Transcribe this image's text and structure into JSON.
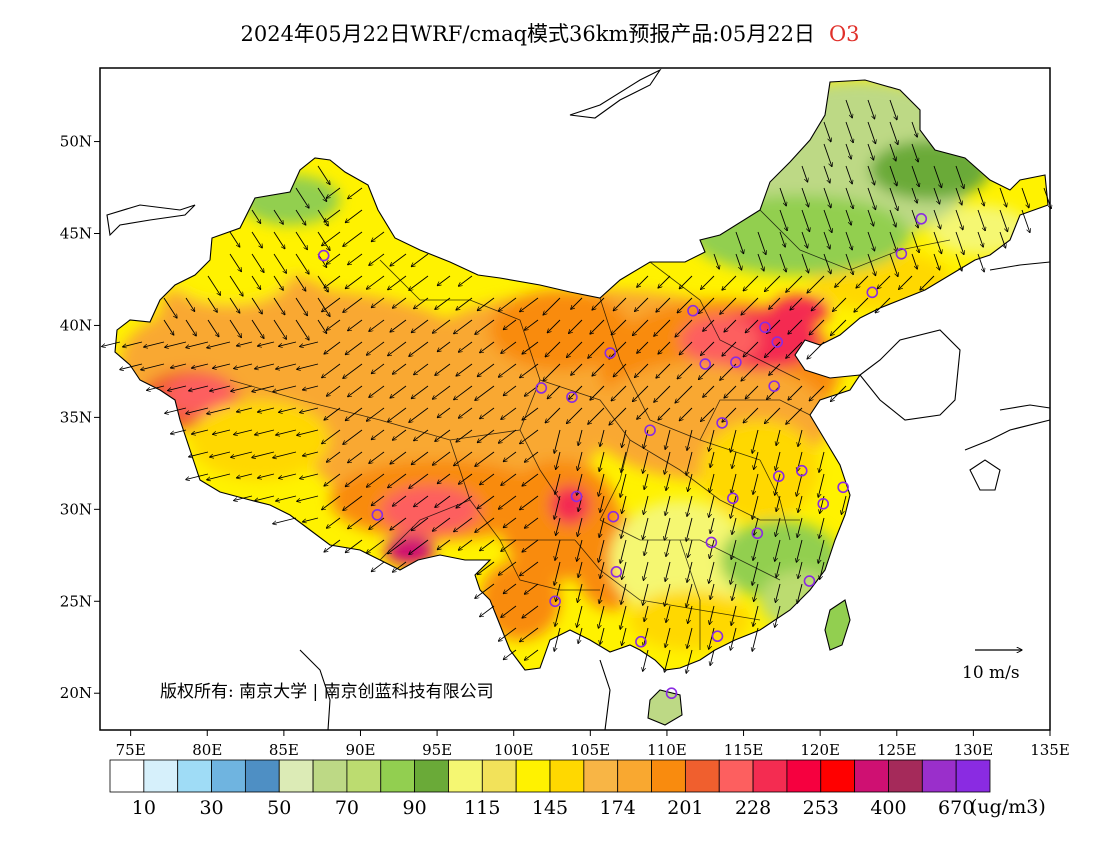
{
  "title": {
    "main": "2024年05月22日WRF/cmaq模式36km预报产品:05月22日",
    "variable": "O3",
    "variable_color": "#e0302a"
  },
  "map": {
    "lon_range": [
      73,
      135
    ],
    "lat_range": [
      18,
      54
    ],
    "lon_ticks": [
      75,
      80,
      85,
      90,
      95,
      100,
      105,
      110,
      115,
      120,
      125,
      130,
      135
    ],
    "lon_tick_labels": [
      "75E",
      "80E",
      "85E",
      "90E",
      "95E",
      "100E",
      "105E",
      "110E",
      "115E",
      "120E",
      "125E",
      "130E",
      "135E"
    ],
    "lat_ticks": [
      20,
      25,
      30,
      35,
      40,
      45,
      50
    ],
    "lat_tick_labels": [
      "20N",
      "25N",
      "30N",
      "35N",
      "40N",
      "45N",
      "50N"
    ],
    "wind_vector_reference": "10 m/s",
    "copyright": "版权所有: 南京大学 | 南京创蓝科技有限公司"
  },
  "colorbar": {
    "unit": "(ug/m3)",
    "colors": [
      "#ffffff",
      "#d6f0fb",
      "#9fdcf6",
      "#6fb4e0",
      "#4e8fc4",
      "#dcebb6",
      "#bdd985",
      "#bcdc70",
      "#92cf50",
      "#6aaa38",
      "#f5f772",
      "#f2e25a",
      "#fff200",
      "#ffd800",
      "#f8b545",
      "#f9a830",
      "#f98b0e",
      "#f05f2e",
      "#fd5f5f",
      "#f42c51",
      "#f6003f",
      "#ff0000",
      "#cf1072",
      "#a52a5a",
      "#9a2fcb",
      "#8a2be2"
    ],
    "labels": [
      "10",
      "30",
      "50",
      "70",
      "90",
      "115",
      "145",
      "174",
      "201",
      "228",
      "253",
      "400",
      "670"
    ]
  },
  "cities": [
    {
      "lon": 87.6,
      "lat": 43.8
    },
    {
      "lon": 91.1,
      "lat": 29.7
    },
    {
      "lon": 101.8,
      "lat": 36.6
    },
    {
      "lon": 103.8,
      "lat": 36.1
    },
    {
      "lon": 106.3,
      "lat": 38.5
    },
    {
      "lon": 104.1,
      "lat": 30.7
    },
    {
      "lon": 106.5,
      "lat": 29.6
    },
    {
      "lon": 106.7,
      "lat": 26.6
    },
    {
      "lon": 102.7,
      "lat": 25.0
    },
    {
      "lon": 108.9,
      "lat": 34.3
    },
    {
      "lon": 111.7,
      "lat": 40.8
    },
    {
      "lon": 112.5,
      "lat": 37.9
    },
    {
      "lon": 114.5,
      "lat": 38.0
    },
    {
      "lon": 116.4,
      "lat": 39.9
    },
    {
      "lon": 117.2,
      "lat": 39.1
    },
    {
      "lon": 117.0,
      "lat": 36.7
    },
    {
      "lon": 113.6,
      "lat": 34.7
    },
    {
      "lon": 114.3,
      "lat": 30.6
    },
    {
      "lon": 112.9,
      "lat": 28.2
    },
    {
      "lon": 115.9,
      "lat": 28.7
    },
    {
      "lon": 117.3,
      "lat": 31.8
    },
    {
      "lon": 118.8,
      "lat": 32.1
    },
    {
      "lon": 120.2,
      "lat": 30.3
    },
    {
      "lon": 121.5,
      "lat": 31.2
    },
    {
      "lon": 119.3,
      "lat": 26.1
    },
    {
      "lon": 113.3,
      "lat": 23.1
    },
    {
      "lon": 108.3,
      "lat": 22.8
    },
    {
      "lon": 110.3,
      "lat": 20.0
    },
    {
      "lon": 123.4,
      "lat": 41.8
    },
    {
      "lon": 125.3,
      "lat": 43.9
    },
    {
      "lon": 126.6,
      "lat": 45.8
    }
  ]
}
